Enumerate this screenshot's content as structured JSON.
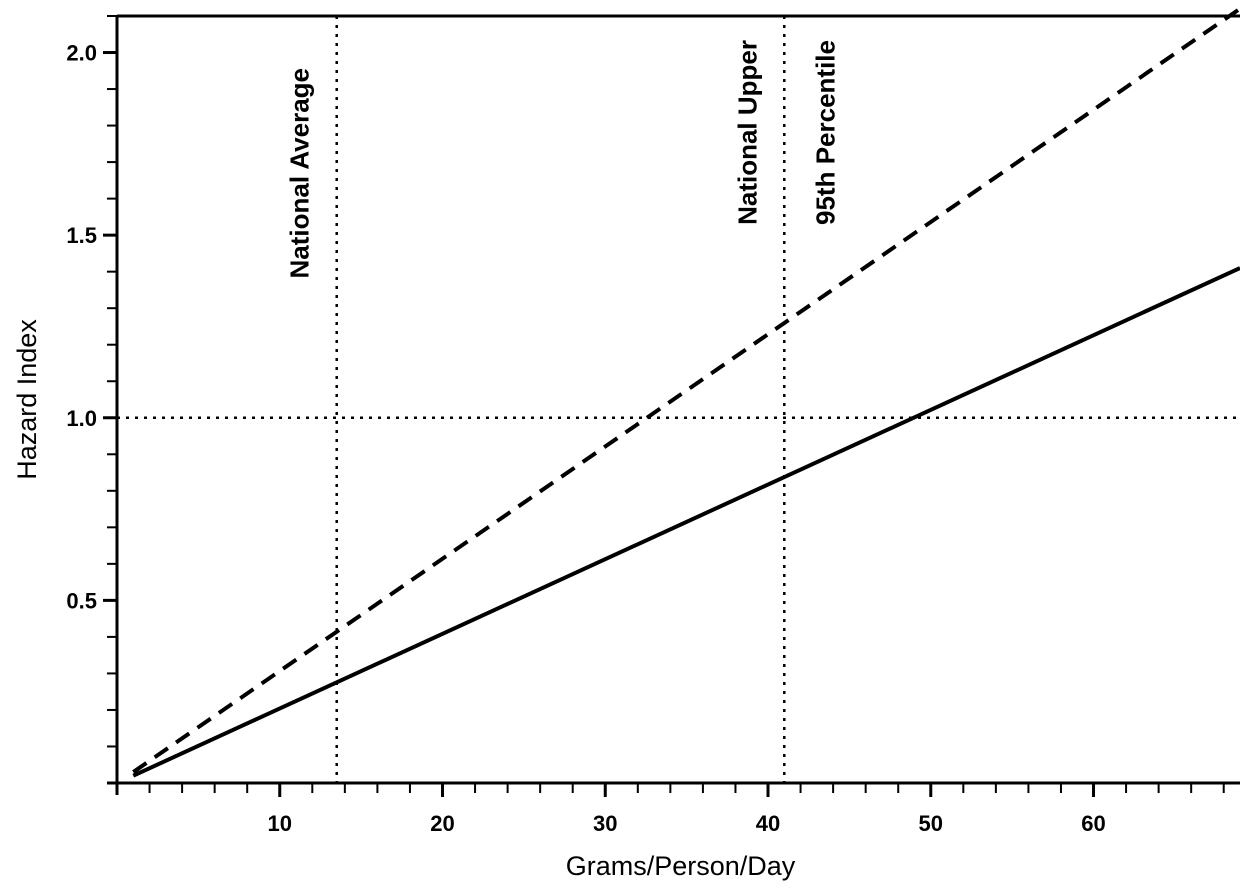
{
  "chart_data": {
    "type": "line",
    "title": "",
    "xlabel": "Grams/Person/Day",
    "ylabel": "Hazard Index",
    "xlim": [
      0,
      69
    ],
    "ylim": [
      0,
      2.1
    ],
    "x_ticks": [
      10,
      20,
      30,
      40,
      50,
      60
    ],
    "y_ticks": [
      0.5,
      1.0,
      1.5,
      2.0
    ],
    "y_tick_labels": [
      "0.5",
      "1.0",
      "1.5",
      "2.0"
    ],
    "x_minor_step": 2,
    "y_minor_step": 0.1,
    "grid": false,
    "series": [
      {
        "style": "solid",
        "x": [
          1,
          69
        ],
        "y": [
          0.02,
          1.41
        ]
      },
      {
        "style": "dashed",
        "x": [
          1,
          69
        ],
        "y": [
          0.03,
          2.12
        ]
      }
    ],
    "reference_lines": {
      "vertical": [
        {
          "x": 13.5,
          "labels": [
            "National Average"
          ]
        },
        {
          "x": 41,
          "labels": [
            "National Upper",
            "95th Percentile"
          ]
        }
      ],
      "horizontal": [
        {
          "y": 1.0
        }
      ]
    }
  }
}
